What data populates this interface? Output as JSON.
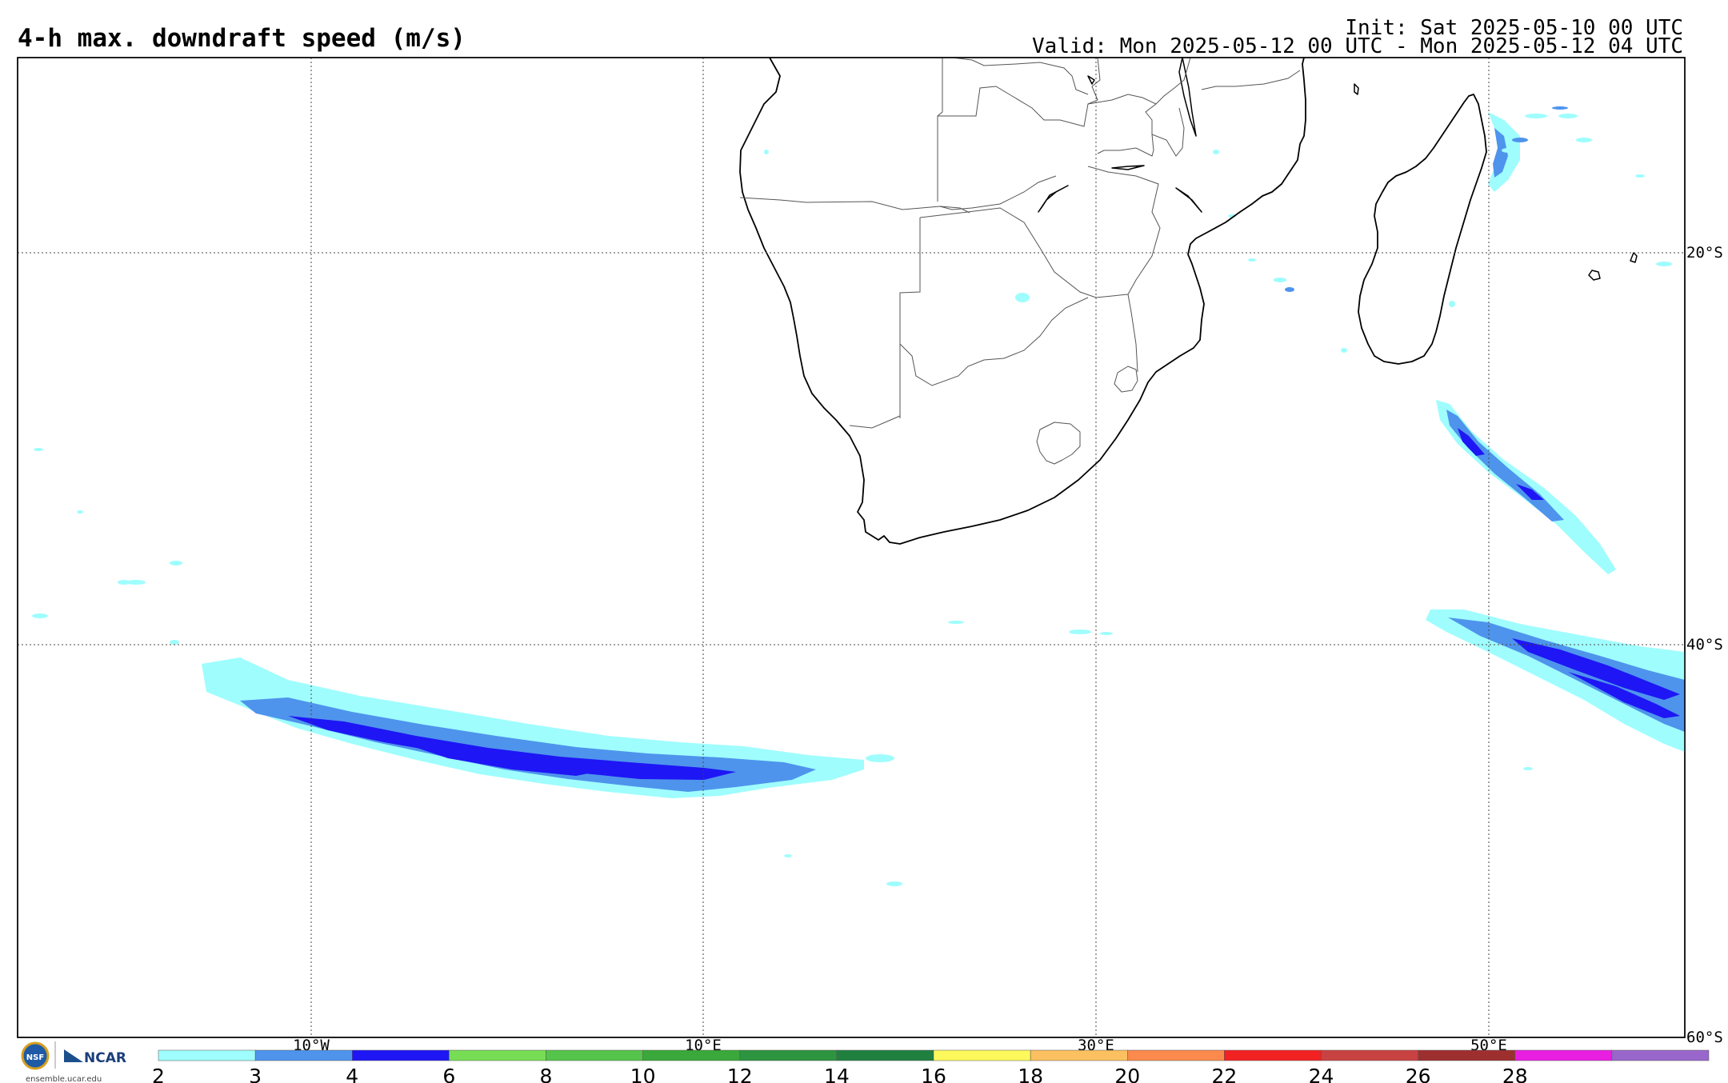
{
  "header": {
    "title": "4-h max. downdraft speed (m/s)",
    "init": "Init: Sat 2025-05-10 00 UTC",
    "valid": "Valid: Mon 2025-05-12 00 UTC - Mon 2025-05-12 04 UTC"
  },
  "map": {
    "longitude_labels": [
      "10°W",
      "10°E",
      "30°E",
      "50°E"
    ],
    "latitude_labels": [
      "20°S",
      "40°S",
      "60°S"
    ],
    "grid": "dotted",
    "field_regions": [
      {
        "name": "south-atlantic-band",
        "max_class": "4-6"
      },
      {
        "name": "southwest-indian-band",
        "max_class": "4-6"
      },
      {
        "name": "east-madagascar-streaks",
        "max_class": "4-6"
      }
    ]
  },
  "colorbar": {
    "ticks": [
      "2",
      "3",
      "4",
      "6",
      "8",
      "10",
      "12",
      "14",
      "16",
      "18",
      "20",
      "22",
      "24",
      "26",
      "28"
    ],
    "colors": [
      "#9ffdfd",
      "#4e94ec",
      "#1e16f5",
      "#77dd55",
      "#55c44a",
      "#3aa83a",
      "#2d9440",
      "#208040",
      "#fdf95c",
      "#fcc060",
      "#fb8a4c",
      "#f22222",
      "#c94242",
      "#9e2f2f",
      "#e81ee1",
      "#9966cc"
    ]
  },
  "logo": {
    "nsf": "NSF",
    "ncar": "NCAR",
    "url": "ensemble.ucar.edu"
  },
  "colors": {
    "coast": "#000000",
    "border": "#555555",
    "grid": "#444444"
  }
}
